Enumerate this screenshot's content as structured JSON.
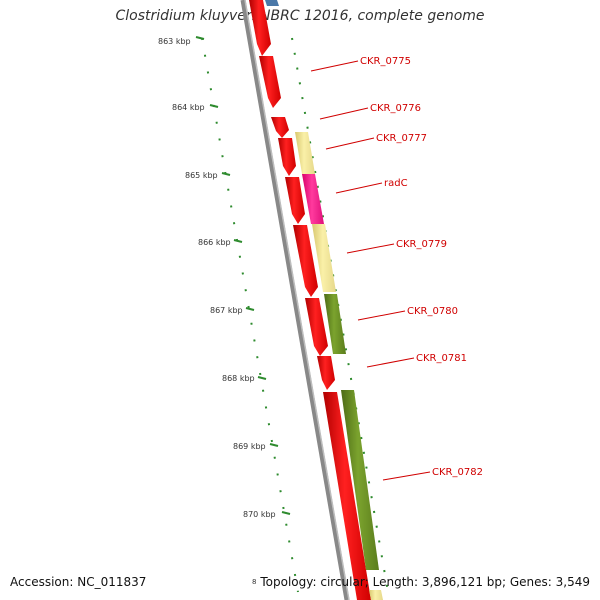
{
  "title": "Clostridium kluyveri NBRC 12016, complete genome",
  "accession": "Accession: NC_011837",
  "summary": "Topology: circular; Length: 3,896,121 bp; Genes: 3,549",
  "small_mark": "8",
  "kbp_labels": [
    "863 kbp",
    "864 kbp",
    "865 kbp",
    "866 kbp",
    "867 kbp",
    "868 kbp",
    "869 kbp",
    "870 kbp"
  ],
  "gene_labels": [
    "CKR_0775",
    "CKR_0776",
    "CKR_0777",
    "radC",
    "CKR_0779",
    "CKR_0780",
    "CKR_0781",
    "CKR_0782"
  ],
  "colors": {
    "red": "#ff0000",
    "pale_yellow": "#f3e795",
    "magenta": "#ff1f8f",
    "olive": "#6b8e23",
    "blue": "#4a78a8",
    "scale_green": "#2e8b2e",
    "backbone": "#888888",
    "label_red": "#d00000"
  }
}
